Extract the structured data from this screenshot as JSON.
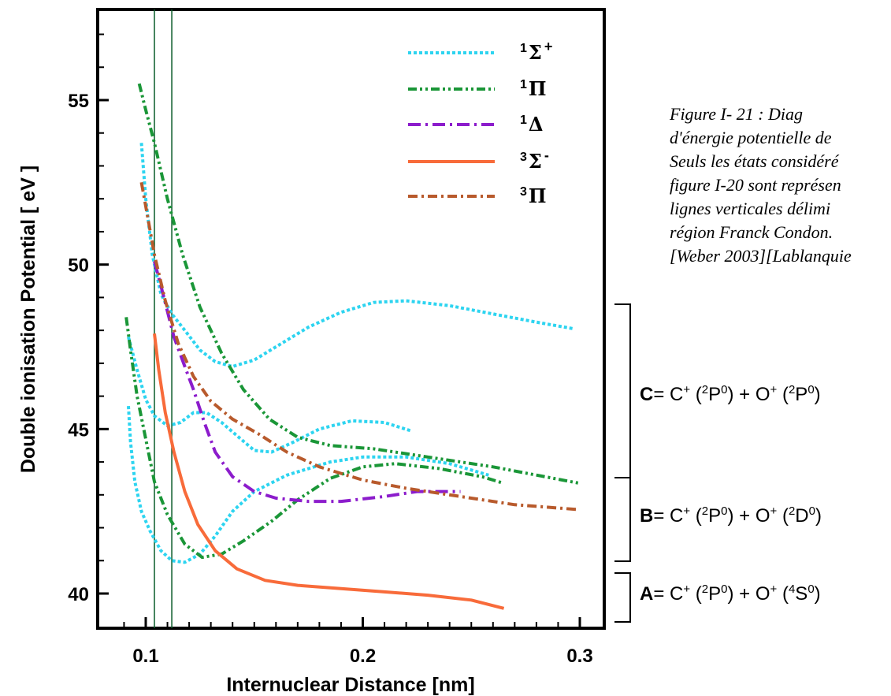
{
  "chart_data": {
    "type": "line",
    "xlabel": "Internuclear Distance [nm]",
    "ylabel": "Double ionisation Potential [ eV ]",
    "xlim": [
      0.08,
      0.31
    ],
    "ylim": [
      39.1,
      57.5
    ],
    "x_ticks": [
      "0.1",
      "0.2",
      "0.3"
    ],
    "y_ticks": [
      "40",
      "45",
      "50",
      "55"
    ],
    "franck_condon_lines_x": [
      0.104,
      0.112
    ],
    "legend_placement": "top-right",
    "series": [
      {
        "name": "1Σ+",
        "label_sup_left": "1",
        "label_symbol": "Σ",
        "label_sup_right": "+",
        "color": "#2dd4f0",
        "dash": "4,3",
        "curves": [
          [
            [
              0.098,
              53.7
            ],
            [
              0.1,
              52.0
            ],
            [
              0.103,
              50.3
            ],
            [
              0.107,
              49.1
            ],
            [
              0.112,
              48.5
            ],
            [
              0.118,
              48.0
            ],
            [
              0.125,
              47.4
            ],
            [
              0.132,
              47.05
            ],
            [
              0.14,
              46.9
            ],
            [
              0.15,
              47.1
            ],
            [
              0.16,
              47.5
            ],
            [
              0.175,
              48.1
            ],
            [
              0.19,
              48.55
            ],
            [
              0.205,
              48.85
            ],
            [
              0.22,
              48.9
            ],
            [
              0.24,
              48.75
            ],
            [
              0.26,
              48.5
            ],
            [
              0.28,
              48.25
            ],
            [
              0.297,
              48.05
            ]
          ],
          [
            [
              0.092,
              47.8
            ],
            [
              0.096,
              46.8
            ],
            [
              0.1,
              45.9
            ],
            [
              0.104,
              45.4
            ],
            [
              0.11,
              45.1
            ],
            [
              0.116,
              45.2
            ],
            [
              0.122,
              45.5
            ],
            [
              0.128,
              45.5
            ],
            [
              0.135,
              45.2
            ],
            [
              0.142,
              44.8
            ],
            [
              0.15,
              44.35
            ],
            [
              0.158,
              44.3
            ],
            [
              0.168,
              44.6
            ],
            [
              0.18,
              45.0
            ],
            [
              0.195,
              45.25
            ],
            [
              0.21,
              45.2
            ],
            [
              0.222,
              44.95
            ]
          ],
          [
            [
              0.092,
              45.7
            ],
            [
              0.093,
              44.6
            ],
            [
              0.095,
              43.4
            ],
            [
              0.098,
              42.5
            ],
            [
              0.102,
              41.9
            ],
            [
              0.107,
              41.3
            ],
            [
              0.112,
              41.0
            ],
            [
              0.118,
              40.95
            ],
            [
              0.125,
              41.2
            ],
            [
              0.132,
              41.75
            ],
            [
              0.14,
              42.5
            ],
            [
              0.15,
              43.1
            ],
            [
              0.165,
              43.6
            ],
            [
              0.185,
              44.0
            ],
            [
              0.2,
              44.15
            ],
            [
              0.22,
              44.15
            ],
            [
              0.24,
              43.95
            ],
            [
              0.258,
              43.6
            ]
          ]
        ]
      },
      {
        "name": "1Π",
        "label_sup_left": "1",
        "label_symbol": "Π",
        "label_sup_right": "",
        "color": "#1a9637",
        "dash": "11,4,3,4,3,4",
        "curves": [
          [
            [
              0.097,
              55.5
            ],
            [
              0.1,
              54.7
            ],
            [
              0.104,
              53.7
            ],
            [
              0.11,
              52.0
            ],
            [
              0.117,
              50.3
            ],
            [
              0.125,
              48.7
            ],
            [
              0.135,
              47.3
            ],
            [
              0.145,
              46.2
            ],
            [
              0.157,
              45.3
            ],
            [
              0.17,
              44.75
            ],
            [
              0.185,
              44.5
            ],
            [
              0.205,
              44.4
            ],
            [
              0.23,
              44.15
            ],
            [
              0.26,
              43.85
            ],
            [
              0.3,
              43.35
            ]
          ],
          [
            [
              0.091,
              48.4
            ],
            [
              0.093,
              47.4
            ],
            [
              0.096,
              46.0
            ],
            [
              0.1,
              44.7
            ],
            [
              0.104,
              43.4
            ],
            [
              0.11,
              42.4
            ],
            [
              0.118,
              41.5
            ],
            [
              0.126,
              41.1
            ],
            [
              0.135,
              41.2
            ],
            [
              0.145,
              41.6
            ],
            [
              0.158,
              42.2
            ],
            [
              0.17,
              42.85
            ],
            [
              0.185,
              43.5
            ],
            [
              0.2,
              43.85
            ],
            [
              0.215,
              43.95
            ],
            [
              0.235,
              43.8
            ],
            [
              0.255,
              43.55
            ],
            [
              0.265,
              43.35
            ]
          ]
        ]
      },
      {
        "name": "1Δ",
        "label_sup_left": "1",
        "label_symbol": "Δ",
        "label_sup_right": "",
        "color": "#8c1ccc",
        "dash": "16,6,3,6",
        "curves": [
          [
            [
              0.104,
              50.1
            ],
            [
              0.108,
              49.1
            ],
            [
              0.113,
              47.8
            ],
            [
              0.118,
              46.9
            ],
            [
              0.122,
              46.2
            ],
            [
              0.127,
              45.2
            ],
            [
              0.132,
              44.3
            ],
            [
              0.14,
              43.55
            ],
            [
              0.15,
              43.1
            ],
            [
              0.16,
              42.9
            ],
            [
              0.175,
              42.8
            ],
            [
              0.19,
              42.8
            ],
            [
              0.21,
              42.95
            ],
            [
              0.225,
              43.1
            ],
            [
              0.245,
              43.1
            ]
          ]
        ]
      },
      {
        "name": "3Σ-",
        "label_sup_left": "3",
        "label_symbol": "Σ",
        "label_sup_right": "-",
        "color": "#f86b3a",
        "dash": "",
        "curves": [
          [
            [
              0.104,
              47.9
            ],
            [
              0.106,
              46.8
            ],
            [
              0.109,
              45.5
            ],
            [
              0.113,
              44.3
            ],
            [
              0.118,
              43.1
            ],
            [
              0.124,
              42.1
            ],
            [
              0.132,
              41.3
            ],
            [
              0.142,
              40.75
            ],
            [
              0.155,
              40.4
            ],
            [
              0.17,
              40.25
            ],
            [
              0.19,
              40.15
            ],
            [
              0.21,
              40.05
            ],
            [
              0.23,
              39.95
            ],
            [
              0.25,
              39.8
            ],
            [
              0.265,
              39.55
            ]
          ]
        ]
      },
      {
        "name": "3Π",
        "label_sup_left": "3",
        "label_symbol": "Π",
        "label_sup_right": "",
        "color": "#b85a2c",
        "dash": "12,5,3,5",
        "curves": [
          [
            [
              0.098,
              52.5
            ],
            [
              0.101,
              51.4
            ],
            [
              0.104,
              50.3
            ],
            [
              0.109,
              48.9
            ],
            [
              0.115,
              47.6
            ],
            [
              0.122,
              46.6
            ],
            [
              0.13,
              45.85
            ],
            [
              0.14,
              45.3
            ],
            [
              0.152,
              44.85
            ],
            [
              0.165,
              44.3
            ],
            [
              0.18,
              43.85
            ],
            [
              0.2,
              43.45
            ],
            [
              0.22,
              43.2
            ],
            [
              0.245,
              42.95
            ],
            [
              0.27,
              42.7
            ],
            [
              0.3,
              42.55
            ]
          ]
        ]
      }
    ]
  },
  "caption": {
    "lines": [
      "Figure   I-   21   :   Diag",
      "d'énergie  potentielle  de",
      "Seuls  les  états  considéré",
      "figure I-20 sont représen",
      "lignes   verticales   délimi",
      "région Franck Condon.",
      "[Weber 2003][Lablanquie"
    ]
  },
  "states": [
    {
      "letter": "C",
      "rest": "= C",
      "ion1_charge": "+",
      "ion1_term_mult": "2",
      "ion1_term": "P",
      "ion1_term_sup": "0",
      "mid": ") + O",
      "ion2_charge": "+",
      "ion2_term_mult": "2",
      "ion2_term": "P",
      "ion2_term_sup": "0",
      "end": ")"
    },
    {
      "letter": "B",
      "rest": "= C",
      "ion1_charge": "+",
      "ion1_term_mult": "2",
      "ion1_term": "P",
      "ion1_term_sup": "0",
      "mid": ") + O",
      "ion2_charge": "+",
      "ion2_term_mult": "2",
      "ion2_term": "D",
      "ion2_term_sup": "0",
      "end": ")"
    },
    {
      "letter": "A",
      "rest": "= C",
      "ion1_charge": "+",
      "ion1_term_mult": "2",
      "ion1_term": "P",
      "ion1_term_sup": "0",
      "mid": ") + O",
      "ion2_charge": "+",
      "ion2_term_mult": "4",
      "ion2_term": "S",
      "ion2_term_sup": "0",
      "end": ")"
    }
  ]
}
